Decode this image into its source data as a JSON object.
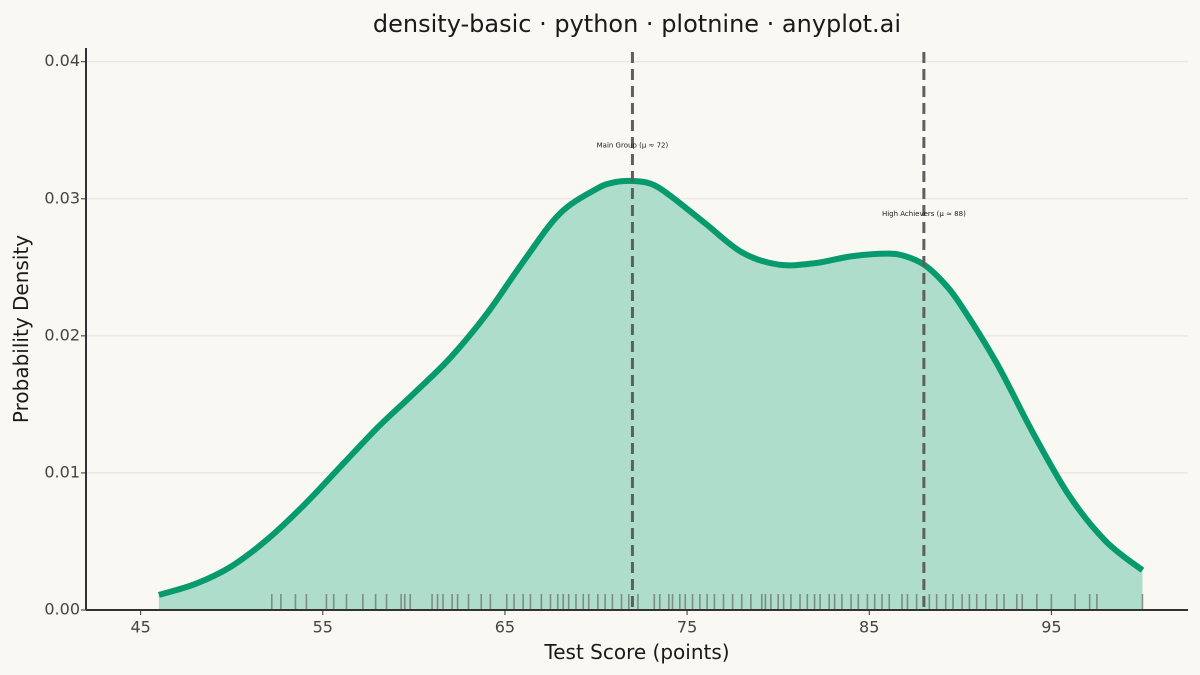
{
  "chart_data": {
    "type": "area",
    "title": "density-basic · python · plotnine · anyplot.ai",
    "xlabel": "Test Score (points)",
    "ylabel": "Probability Density",
    "xlim": [
      42,
      102.5
    ],
    "ylim": [
      0,
      0.041
    ],
    "x_ticks": [
      45,
      55,
      65,
      75,
      85,
      95
    ],
    "y_ticks": [
      0.0,
      0.01,
      0.02,
      0.03,
      0.04
    ],
    "x_tick_labels": [
      "45",
      "55",
      "65",
      "75",
      "85",
      "95"
    ],
    "y_tick_labels": [
      "0.00",
      "0.01",
      "0.02",
      "0.03",
      "0.04"
    ],
    "grid": "horizontal",
    "legend": "none",
    "colors": {
      "background": "#FAF8F2",
      "line": "#079A6C",
      "fill": "#AEDDCB",
      "vline": "#5F5F5F",
      "rug": "#6B6B6B",
      "grid": "#E3E1DB",
      "axis": "#333333"
    },
    "series": [
      {
        "x": [
          46,
          48,
          50,
          52,
          54,
          56,
          58,
          60,
          62,
          64,
          66,
          68,
          70,
          71,
          72,
          73,
          74,
          76,
          78,
          80,
          82,
          84,
          86,
          87,
          88,
          89,
          90,
          92,
          94,
          96,
          98,
          100
        ],
        "y": [
          0.0011,
          0.0019,
          0.0032,
          0.0052,
          0.0077,
          0.0105,
          0.0133,
          0.0158,
          0.0184,
          0.0216,
          0.0254,
          0.0289,
          0.0307,
          0.0312,
          0.0313,
          0.0311,
          0.0303,
          0.0282,
          0.0261,
          0.0252,
          0.0253,
          0.0258,
          0.026,
          0.0258,
          0.0252,
          0.024,
          0.0223,
          0.018,
          0.0129,
          0.0083,
          0.005,
          0.0029
        ]
      }
    ],
    "vlines": [
      {
        "x": 72,
        "label": "Main Group (μ ≈ 72)",
        "label_y": 0.0339
      },
      {
        "x": 88,
        "label": "High Achievers (μ ≈ 88)",
        "label_y": 0.0289
      }
    ],
    "rug": [
      52.2,
      52.7,
      53.5,
      54.1,
      55.2,
      55.6,
      56.3,
      57.2,
      57.9,
      58.5,
      59.3,
      59.5,
      59.8,
      61.0,
      61.3,
      61.6,
      62.1,
      62.4,
      63.0,
      63.7,
      64.2,
      65.1,
      65.5,
      66.0,
      66.4,
      67.0,
      67.5,
      67.9,
      68.2,
      68.5,
      68.9,
      69.3,
      69.6,
      70.1,
      70.5,
      70.9,
      71.4,
      71.8,
      72.3,
      73.2,
      73.5,
      74.0,
      74.2,
      74.6,
      74.9,
      75.3,
      75.7,
      76.1,
      76.5,
      77.0,
      77.5,
      78.0,
      78.5,
      79.1,
      79.3,
      79.6,
      80.0,
      80.3,
      80.7,
      81.2,
      81.6,
      82.0,
      82.3,
      82.8,
      83.1,
      83.5,
      84.0,
      84.4,
      84.9,
      85.3,
      85.7,
      86.1,
      86.8,
      87.1,
      87.6,
      88.3,
      88.7,
      89.2,
      89.6,
      90.1,
      90.5,
      90.9,
      91.4,
      92.0,
      92.4,
      93.1,
      93.4,
      94.2,
      95.0,
      96.3,
      97.1,
      97.5,
      100.0
    ]
  }
}
